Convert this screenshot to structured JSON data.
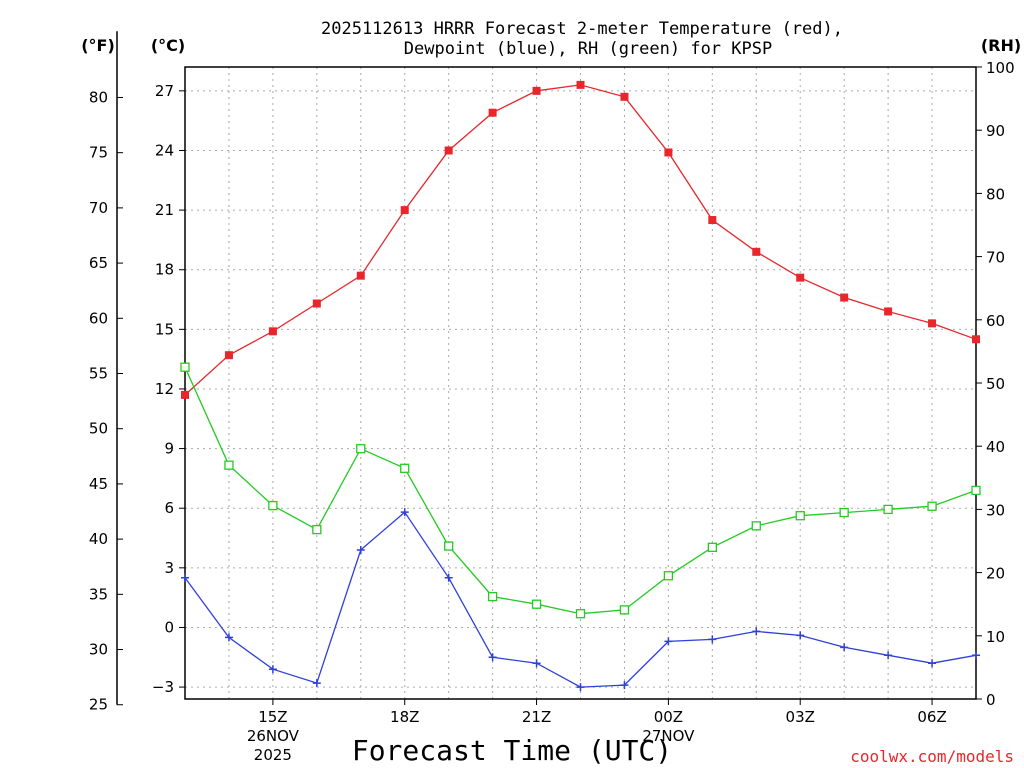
{
  "chart_data": {
    "type": "line",
    "title_line1": "2025112613 HRRR Forecast 2-meter Temperature (red),",
    "title_line2": "Dewpoint (blue), RH (green) for KPSP",
    "units": {
      "fahrenheit": "(°F)",
      "celsius": "(°C)",
      "rh": "(RH)"
    },
    "xlabel": "Forecast Time (UTC)",
    "credit": "coolwx.com/models",
    "x_hours": [
      13,
      14,
      15,
      16,
      17,
      18,
      19,
      20,
      21,
      22,
      23,
      24,
      25,
      26,
      27,
      28,
      29,
      30,
      31
    ],
    "xlim": [
      13,
      31
    ],
    "x_ticks": [
      {
        "hour": 15,
        "label": "15Z",
        "sub1": "26NOV",
        "sub2": "2025"
      },
      {
        "hour": 18,
        "label": "18Z",
        "sub1": "",
        "sub2": ""
      },
      {
        "hour": 21,
        "label": "21Z",
        "sub1": "",
        "sub2": ""
      },
      {
        "hour": 24,
        "label": "00Z",
        "sub1": "27NOV",
        "sub2": ""
      },
      {
        "hour": 27,
        "label": "03Z",
        "sub1": "",
        "sub2": ""
      },
      {
        "hour": 30,
        "label": "06Z",
        "sub1": "",
        "sub2": ""
      }
    ],
    "celsius_axis": {
      "ylim": [
        -3.6,
        28.2
      ],
      "ticks": [
        27,
        24,
        21,
        18,
        15,
        12,
        9,
        6,
        3,
        0,
        -3
      ]
    },
    "fahrenheit_ticks": [
      80,
      75,
      70,
      65,
      60,
      55,
      50,
      45,
      40,
      35,
      30,
      25
    ],
    "rh_axis": {
      "ylim": [
        0,
        100
      ],
      "ticks": [
        100,
        90,
        80,
        70,
        60,
        50,
        40,
        30,
        20,
        10,
        0
      ]
    },
    "series": [
      {
        "name": "Temperature",
        "axis": "celsius",
        "color": "#e8262b",
        "marker": "filled-square",
        "values": [
          11.7,
          13.7,
          14.9,
          16.3,
          17.7,
          21.0,
          24.0,
          25.9,
          27.0,
          27.3,
          26.7,
          23.9,
          20.5,
          18.9,
          17.6,
          16.6,
          15.9,
          15.3,
          14.5
        ]
      },
      {
        "name": "Dewpoint",
        "axis": "celsius",
        "color": "#2f3fd8",
        "marker": "plus",
        "values": [
          2.5,
          -0.5,
          -2.1,
          -2.8,
          3.9,
          5.8,
          2.5,
          -1.5,
          -1.8,
          -3.0,
          -2.9,
          -0.7,
          -0.6,
          -0.2,
          -0.4,
          -1.0,
          -1.4,
          -1.8,
          -1.4
        ]
      },
      {
        "name": "RH",
        "axis": "rh",
        "color": "#22cc22",
        "marker": "open-square",
        "values": [
          52.5,
          37.0,
          30.6,
          26.8,
          39.6,
          36.5,
          24.2,
          16.2,
          15.0,
          13.5,
          14.1,
          19.5,
          24.0,
          27.4,
          29.0,
          29.5,
          30.0,
          30.5,
          33.0
        ]
      }
    ]
  }
}
